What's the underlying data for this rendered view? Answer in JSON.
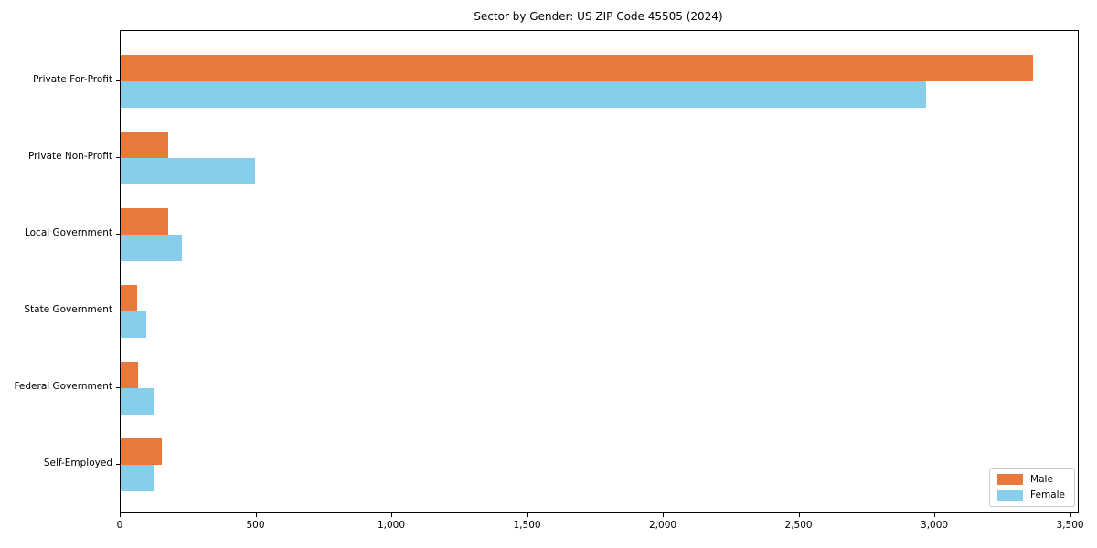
{
  "chart_data": {
    "type": "bar",
    "orientation": "horizontal",
    "title": "Sector by Gender: US ZIP Code 45505 (2024)",
    "categories": [
      "Private For-Profit",
      "Private Non-Profit",
      "Local Government",
      "State Government",
      "Federal Government",
      "Self-Employed"
    ],
    "series": [
      {
        "name": "Male",
        "color": "#e8793d",
        "values": [
          3360,
          175,
          175,
          60,
          65,
          150
        ]
      },
      {
        "name": "Female",
        "color": "#87ceeb",
        "values": [
          2965,
          495,
          225,
          95,
          120,
          125
        ]
      }
    ],
    "xlabel": "",
    "ylabel": "",
    "xlim": [
      0,
      3525
    ],
    "x_ticks": [
      0,
      500,
      1000,
      1500,
      2000,
      2500,
      3000,
      3500
    ],
    "x_tick_labels": [
      "0",
      "500",
      "1,000",
      "1,500",
      "2,000",
      "2,500",
      "3,000",
      "3,500"
    ],
    "grid": false,
    "legend": {
      "position": "lower right",
      "entries": [
        "Male",
        "Female"
      ]
    }
  }
}
